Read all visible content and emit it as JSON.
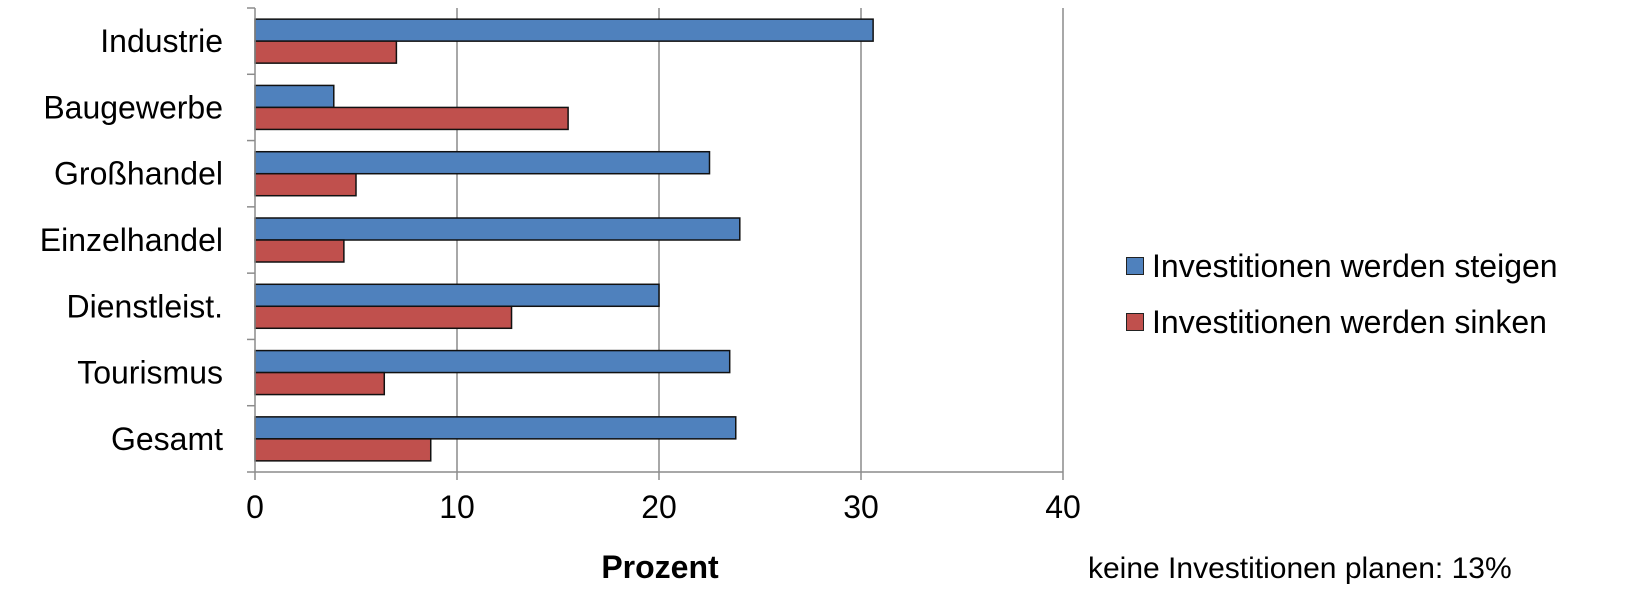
{
  "chart_data": {
    "type": "bar",
    "orientation": "horizontal",
    "categories": [
      "Industrie",
      "Baugewerbe",
      "Großhandel",
      "Einzelhandel",
      "Dienstleist.",
      "Tourismus",
      "Gesamt"
    ],
    "series": [
      {
        "name": "Investitionen werden steigen",
        "color": "#4f81bd",
        "values": [
          30.6,
          3.9,
          22.5,
          24.0,
          20.0,
          23.5,
          23.8
        ]
      },
      {
        "name": "Investitionen werden sinken",
        "color": "#c0504d",
        "values": [
          7.0,
          15.5,
          5.0,
          4.4,
          12.7,
          6.4,
          8.7
        ]
      }
    ],
    "xlabel": "Prozent",
    "ylabel": "",
    "xlim": [
      0,
      40
    ],
    "xticks": [
      "0",
      "10",
      "20",
      "30",
      "40"
    ],
    "grid": "vertical",
    "legend_position": "right"
  },
  "note": "keine Investitionen planen: 13%"
}
